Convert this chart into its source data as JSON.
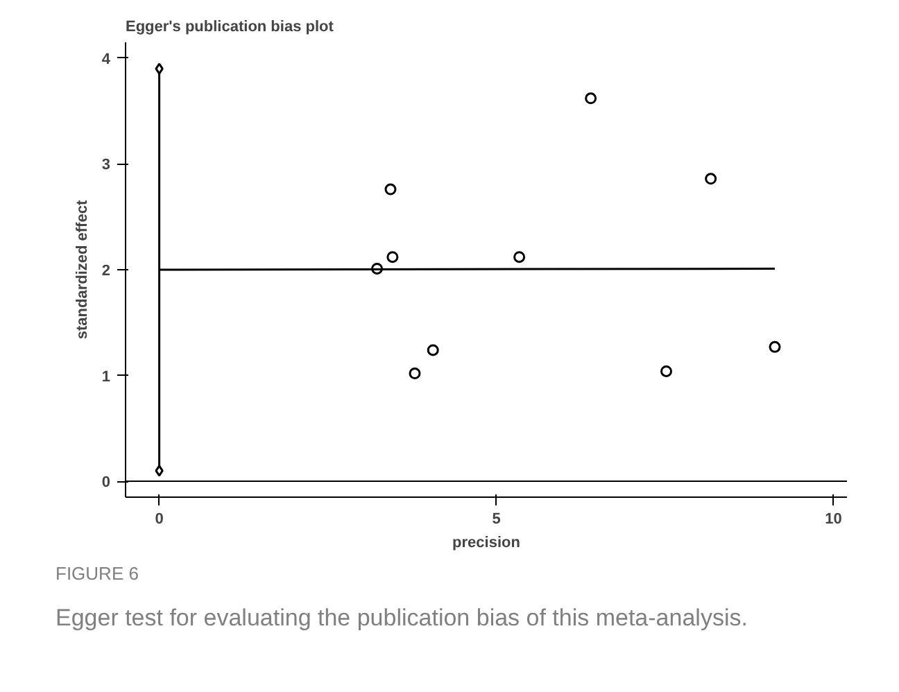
{
  "chart_data": {
    "type": "scatter",
    "title": "Egger's publication bias plot",
    "xlabel": "precision",
    "ylabel": "standardized effect",
    "annotations": [
      "FIGURE 6",
      "Egger test for evaluating the publication bias of this meta-analysis."
    ],
    "xlim": [
      -0.5,
      10.2
    ],
    "ylim": [
      -0.15,
      4.15
    ],
    "xticks": [
      0,
      5,
      10
    ],
    "yticks": [
      0,
      1,
      2,
      3,
      4
    ],
    "grid": false,
    "series": [
      {
        "marker": "circle",
        "color": "#000000",
        "x": [
          3.23,
          3.43,
          3.46,
          3.79,
          4.06,
          5.34,
          6.4,
          8.18,
          7.52,
          9.13
        ],
        "values": [
          2.01,
          2.76,
          2.12,
          1.02,
          1.24,
          2.12,
          3.62,
          2.86,
          1.04,
          1.27
        ]
      },
      {
        "type": "line",
        "marker": "none",
        "color": "#000000",
        "x": [
          0,
          9.13
        ],
        "values": [
          2.0,
          2.01
        ]
      },
      {
        "type": "line",
        "marker": "diamond",
        "color": "#000000",
        "x": [
          0,
          0
        ],
        "values": [
          0.1,
          3.9
        ]
      }
    ],
    "ref_lines": [
      {
        "axis": "y",
        "value": 0,
        "color": "#000000"
      }
    ]
  }
}
